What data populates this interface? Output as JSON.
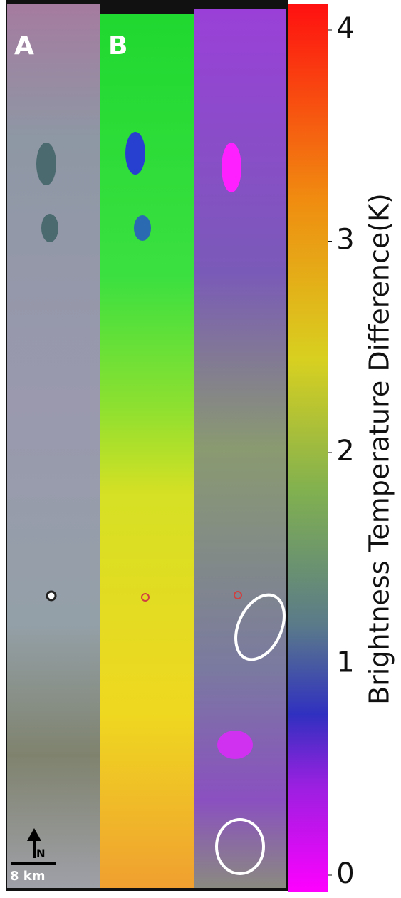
{
  "panels": [
    {
      "label": "A"
    },
    {
      "label": "B"
    }
  ],
  "scale_bar": {
    "label": "8 km",
    "north": "N"
  },
  "colorbar": {
    "label": "Brightness Temperature Difference(K)",
    "lim": [
      0,
      4
    ],
    "ticks": [
      0,
      1,
      2,
      3,
      4
    ]
  }
}
